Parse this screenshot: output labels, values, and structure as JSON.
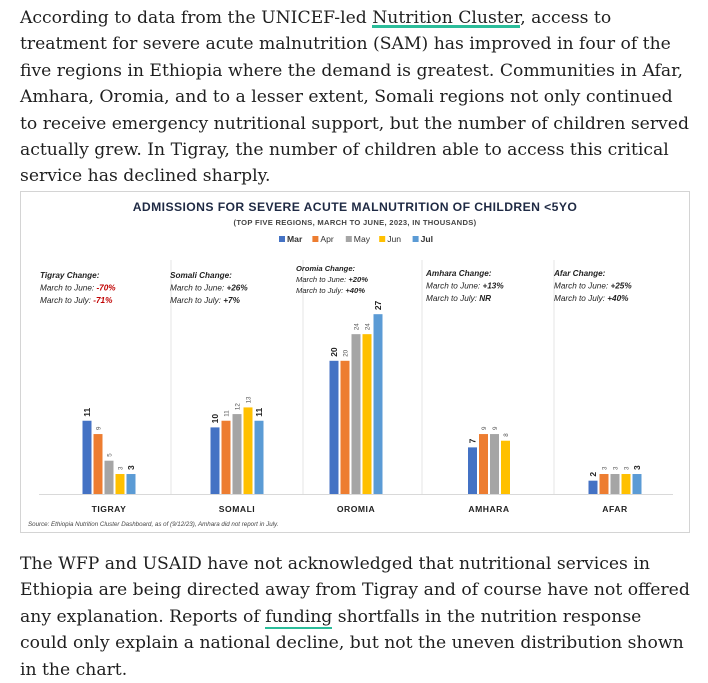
{
  "article": {
    "para1_before_link": "According to data from the UNICEF-led ",
    "para1_link": "Nutrition Cluster",
    "para1_after_link": ", access to treatment for severe acute malnutrition (SAM) has improved in four of the five regions in Ethiopia where the demand is greatest. Communities in Afar, Amhara, Oromia, and to a lesser extent, Somali regions not only continued to receive emergency nutritional support, but the number of children served actually grew. In Tigray, the number of children able to access this critical service has declined sharply.",
    "para2_before_link": "The WFP and USAID have not acknowledged that nutritional services in Ethiopia are being directed away from Tigray and of course have not offered any explanation. Reports of ",
    "para2_link": "funding",
    "para2_after_link": " shortfalls in the nutrition response could only explain a national decline, but not the uneven distribution shown in the chart.",
    "link_color": "#2bbd9a"
  },
  "chart_data": {
    "type": "bar",
    "title": "ADMISSIONS FOR SEVERE ACUTE MALNUTRITION OF CHILDREN <5YO",
    "subtitle": "(TOP FIVE REGIONS, MARCH TO JUNE, 2023, IN THOUSANDS)",
    "categories": [
      "TIGRAY",
      "SOMALI",
      "OROMIA",
      "AMHARA",
      "AFAR"
    ],
    "series": [
      {
        "name": "Mar",
        "color": "#4472c4",
        "values": [
          11,
          10,
          20,
          7,
          2
        ]
      },
      {
        "name": "Apr",
        "color": "#ed7d31",
        "values": [
          9,
          11,
          20,
          9,
          3
        ]
      },
      {
        "name": "May",
        "color": "#a5a5a5",
        "values": [
          5,
          12,
          24,
          9,
          3
        ]
      },
      {
        "name": "Jun",
        "color": "#ffc000",
        "values": [
          3,
          13,
          24,
          8,
          3
        ]
      },
      {
        "name": "Jul",
        "color": "#5b9bd5",
        "values": [
          3,
          11,
          27,
          null,
          3
        ]
      }
    ],
    "bold_labels": [
      "Mar",
      "Jul"
    ],
    "ylim": [
      0,
      28
    ],
    "legend_position": "top-center",
    "annotations": [
      {
        "title": "Tigray Change:",
        "line1_label": "March to June: ",
        "line1_value": "-70%",
        "line2_label": "March to July: ",
        "line2_value": "-71%",
        "value_color": "#c00000"
      },
      {
        "title": "Somali Change:",
        "line1_label": "March to June: ",
        "line1_value": "+26%",
        "line2_label": "March to July: ",
        "line2_value": "+7%",
        "value_color": "#1f1f1f"
      },
      {
        "title": "Oromia Change:",
        "line1_label": "March to June: ",
        "line1_value": "+20%",
        "line2_label": "March to July: ",
        "line2_value": "+40%",
        "value_color": "#1f1f1f"
      },
      {
        "title": "Amhara Change:",
        "line1_label": "March to June: ",
        "line1_value": "+13%",
        "line2_label": "March to July: ",
        "line2_value": "NR",
        "value_color": "#1f1f1f"
      },
      {
        "title": "Afar Change:",
        "line1_label": "March to June: ",
        "line1_value": "+25%",
        "line2_label": "March to July: ",
        "line2_value": "+40%",
        "value_color": "#1f1f1f"
      }
    ],
    "source": "Source: Ethiopia Nutrition Cluster Dashboard, as of (9/12/23), Amhara did not report in July."
  }
}
